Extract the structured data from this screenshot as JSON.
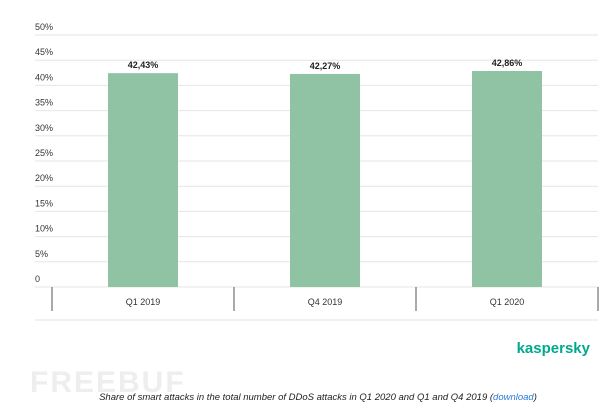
{
  "chart_data": {
    "type": "bar",
    "categories": [
      "Q1 2019",
      "Q4 2019",
      "Q1 2020"
    ],
    "values": [
      42.43,
      42.27,
      42.86
    ],
    "value_labels": [
      "42,43%",
      "42,27%",
      "42,86%"
    ],
    "color": "#8fc3a4",
    "ylim": [
      0,
      50
    ],
    "yticks": [
      0,
      {
        "value": 5,
        "label": "5%"
      },
      {
        "value": 10,
        "label": "10%"
      },
      {
        "value": 15,
        "label": "15%"
      },
      {
        "value": 20,
        "label": "20%"
      },
      {
        "value": 25,
        "label": "25%"
      },
      {
        "value": 30,
        "label": "30%"
      },
      {
        "value": 35,
        "label": "35%"
      },
      {
        "value": 40,
        "label": "40%"
      },
      {
        "value": 45,
        "label": "45%"
      },
      {
        "value": 50,
        "label": "50%"
      }
    ],
    "grid": true
  },
  "brand": "kaspersky",
  "watermark": "FREEBUF",
  "caption": {
    "text": "Share of smart attacks in the total number of DDoS attacks in Q1 2020 and Q1 and Q4 2019 (",
    "link": "download",
    "suffix": ")"
  }
}
